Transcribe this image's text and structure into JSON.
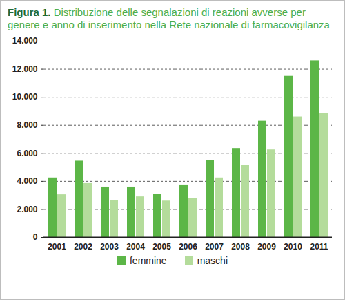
{
  "chart_data": {
    "type": "bar",
    "title": "Figura 1.",
    "subtitle": "Distribuzione delle segnalazioni di reazioni avverse per genere e anno di inserimento nella Rete nazionale di farmacovigilanza",
    "categories": [
      "2001",
      "2002",
      "2003",
      "2004",
      "2005",
      "2006",
      "2007",
      "2008",
      "2009",
      "2010",
      "2011"
    ],
    "series": [
      {
        "name": "femmine",
        "color": "#5cb647",
        "values": [
          4250,
          5450,
          3600,
          3600,
          3100,
          3750,
          5500,
          6350,
          8300,
          11500,
          12600
        ]
      },
      {
        "name": "maschi",
        "color": "#b4dc9b",
        "values": [
          3050,
          3850,
          2650,
          2900,
          2600,
          2800,
          4250,
          5150,
          6250,
          8600,
          8850
        ]
      }
    ],
    "ylim": [
      0,
      14000
    ],
    "yticks": [
      0,
      {
        "value": 2000,
        "label": "2.000"
      },
      {
        "value": 4000,
        "label": "4.000"
      },
      {
        "value": 6000,
        "label": "6.000"
      },
      {
        "value": 8000,
        "label": "8.000"
      },
      {
        "value": 10000,
        "label": "10.000"
      },
      {
        "value": 12000,
        "label": "12.000"
      },
      {
        "value": 14000,
        "label": "14.000"
      }
    ],
    "grid": true,
    "legend": "bottom"
  }
}
